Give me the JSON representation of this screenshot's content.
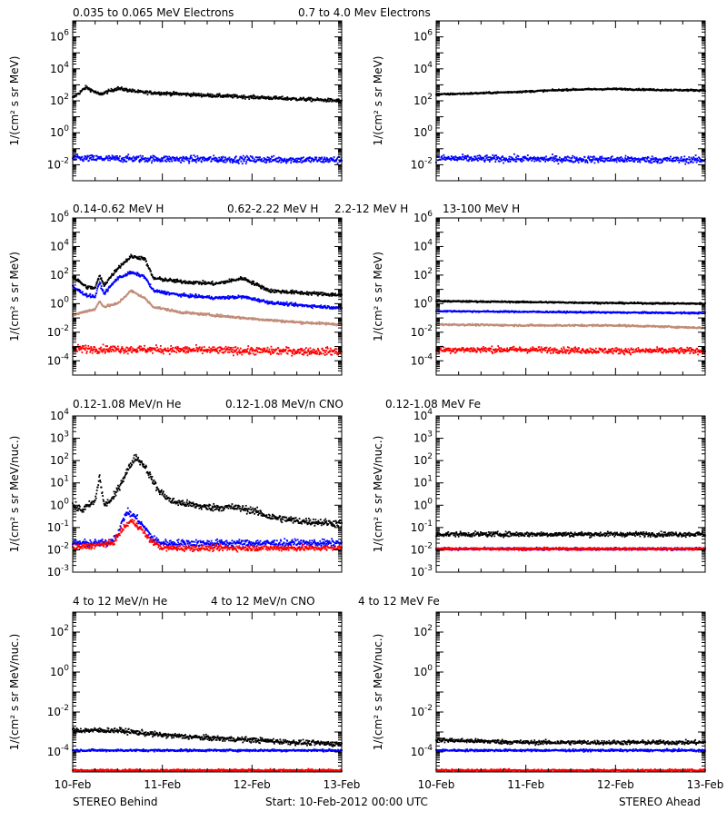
{
  "colors": {
    "black": "#000000",
    "blue": "#0000ff",
    "tan": "#c08c78",
    "red": "#ff0000"
  },
  "footer": {
    "left": "STEREO Behind",
    "center": "Start: 10-Feb-2012 00:00 UTC",
    "right": "STEREO Ahead"
  },
  "x_axis": {
    "ticks": [
      "10-Feb",
      "11-Feb",
      "12-Feb",
      "13-Feb"
    ],
    "range": [
      "2012-02-10",
      "2012-02-13"
    ]
  },
  "rows": [
    {
      "legend": [
        {
          "text": "0.035 to 0.065 MeV Electrons",
          "color": "#000000"
        },
        {
          "text": "0.7 to 4.0 Mev Electrons",
          "color": "#0000ff"
        }
      ],
      "ylabel": "1/(cm² s sr MeV)",
      "ylog": [
        -3,
        7
      ],
      "yticks": [
        {
          "base": "10",
          "exp": "6"
        },
        {
          "base": "10",
          "exp": "4"
        },
        {
          "base": "10",
          "exp": "2"
        },
        {
          "base": "10",
          "exp": "0"
        },
        {
          "base": "10",
          "exp": "-2"
        }
      ]
    },
    {
      "legend": [
        {
          "text": "0.14-0.62 MeV H",
          "color": "#000000"
        },
        {
          "text": "0.62-2.22 MeV H",
          "color": "#0000ff"
        },
        {
          "text": "2.2-12 MeV H",
          "color": "#c08c78"
        },
        {
          "text": "13-100 MeV H",
          "color": "#ff0000"
        }
      ],
      "ylabel": "1/(cm² s sr MeV)",
      "ylog": [
        -5,
        6
      ],
      "yticks": [
        {
          "base": "10",
          "exp": "6"
        },
        {
          "base": "10",
          "exp": "4"
        },
        {
          "base": "10",
          "exp": "2"
        },
        {
          "base": "10",
          "exp": "0"
        },
        {
          "base": "10",
          "exp": "-2"
        },
        {
          "base": "10",
          "exp": "-4"
        }
      ]
    },
    {
      "legend": [
        {
          "text": "0.12-1.08 MeV/n He",
          "color": "#000000"
        },
        {
          "text": "0.12-1.08 MeV/n CNO",
          "color": "#0000ff"
        },
        {
          "text": "0.12-1.08 MeV Fe",
          "color": "#ff0000"
        }
      ],
      "ylabel": "1/(cm² s sr MeV/nuc.)",
      "ylog": [
        -3,
        4
      ],
      "yticks": [
        {
          "base": "10",
          "exp": "4"
        },
        {
          "base": "10",
          "exp": "3"
        },
        {
          "base": "10",
          "exp": "2"
        },
        {
          "base": "10",
          "exp": "1"
        },
        {
          "base": "10",
          "exp": "0"
        },
        {
          "base": "10",
          "exp": "-1"
        },
        {
          "base": "10",
          "exp": "-2"
        },
        {
          "base": "10",
          "exp": "-3"
        }
      ]
    },
    {
      "legend": [
        {
          "text": "4 to 12 MeV/n He",
          "color": "#000000"
        },
        {
          "text": "4 to 12 MeV/n CNO",
          "color": "#0000ff"
        },
        {
          "text": "4 to 12 MeV Fe",
          "color": "#ff0000"
        }
      ],
      "ylabel": "1/(cm² s sr MeV/nuc.)",
      "ylog": [
        -5,
        3
      ],
      "yticks": [
        {
          "base": "10",
          "exp": "2"
        },
        {
          "base": "10",
          "exp": "0"
        },
        {
          "base": "10",
          "exp": "-2"
        },
        {
          "base": "10",
          "exp": "-4"
        }
      ]
    }
  ],
  "chart_data": [
    {
      "type": "scatter",
      "panel": "behind-electrons",
      "ylog": [
        -3,
        7
      ],
      "series": [
        {
          "color": "#000000",
          "x": [
            0,
            0.15,
            0.3,
            0.5,
            0.75,
            1.0,
            1.5,
            2.0,
            2.5,
            3.0
          ],
          "y": [
            150,
            700,
            250,
            600,
            350,
            300,
            220,
            170,
            130,
            100
          ],
          "noise": 0.1
        },
        {
          "color": "#0000ff",
          "x": [
            0,
            1.5,
            3.0
          ],
          "y": [
            0.025,
            0.022,
            0.02
          ],
          "noise": 0.2
        }
      ]
    },
    {
      "type": "scatter",
      "panel": "ahead-electrons",
      "ylog": [
        -3,
        7
      ],
      "series": [
        {
          "color": "#000000",
          "x": [
            0,
            0.5,
            1.0,
            1.5,
            2.0,
            2.5,
            3.0
          ],
          "y": [
            250,
            300,
            380,
            500,
            550,
            480,
            450
          ],
          "noise": 0.05
        },
        {
          "color": "#0000ff",
          "x": [
            0,
            1.5,
            3.0
          ],
          "y": [
            0.025,
            0.022,
            0.02
          ],
          "noise": 0.2
        }
      ]
    },
    {
      "type": "scatter",
      "panel": "behind-protons",
      "ylog": [
        -5,
        6
      ],
      "series": [
        {
          "color": "#000000",
          "x": [
            0,
            0.15,
            0.25,
            0.3,
            0.35,
            0.5,
            0.65,
            0.8,
            0.9,
            1.2,
            1.6,
            1.9,
            2.2,
            2.5,
            3.0
          ],
          "y": [
            80,
            15,
            12,
            90,
            20,
            300,
            2000,
            1500,
            60,
            35,
            25,
            60,
            8,
            6,
            4
          ],
          "noise": 0.12
        },
        {
          "color": "#0000ff",
          "x": [
            0,
            0.15,
            0.25,
            0.3,
            0.35,
            0.5,
            0.65,
            0.8,
            0.9,
            1.2,
            1.6,
            1.9,
            2.2,
            2.5,
            3.0
          ],
          "y": [
            15,
            4,
            3,
            30,
            5,
            60,
            150,
            80,
            8,
            4,
            2.5,
            3,
            1.2,
            0.8,
            0.5
          ],
          "noise": 0.1
        },
        {
          "color": "#c08c78",
          "x": [
            0,
            0.15,
            0.25,
            0.3,
            0.35,
            0.5,
            0.65,
            0.8,
            0.9,
            1.2,
            1.6,
            1.9,
            2.2,
            2.5,
            3.0
          ],
          "y": [
            0.15,
            0.3,
            0.4,
            1.5,
            0.6,
            1.0,
            8,
            2.5,
            0.6,
            0.25,
            0.15,
            0.1,
            0.07,
            0.05,
            0.035
          ],
          "noise": 0.08
        },
        {
          "color": "#ff0000",
          "x": [
            0,
            1.0,
            2.0,
            3.0
          ],
          "y": [
            0.0007,
            0.0006,
            0.0005,
            0.00045
          ],
          "noise": 0.25
        }
      ]
    },
    {
      "type": "scatter",
      "panel": "ahead-protons",
      "ylog": [
        -5,
        6
      ],
      "series": [
        {
          "color": "#000000",
          "x": [
            0,
            1.0,
            2.0,
            3.0
          ],
          "y": [
            1.5,
            1.3,
            1.1,
            1.0
          ],
          "noise": 0.05
        },
        {
          "color": "#0000ff",
          "x": [
            0,
            1.0,
            2.0,
            3.0
          ],
          "y": [
            0.3,
            0.27,
            0.24,
            0.22
          ],
          "noise": 0.05
        },
        {
          "color": "#c08c78",
          "x": [
            0,
            1.0,
            2.0,
            2.5,
            3.0
          ],
          "y": [
            0.035,
            0.03,
            0.03,
            0.025,
            0.02
          ],
          "noise": 0.06
        },
        {
          "color": "#ff0000",
          "x": [
            0,
            1.0,
            2.0,
            3.0
          ],
          "y": [
            0.0006,
            0.0006,
            0.0005,
            0.0005
          ],
          "noise": 0.2
        }
      ]
    },
    {
      "type": "scatter",
      "panel": "behind-heavy-low",
      "ylog": [
        -3,
        4
      ],
      "series": [
        {
          "color": "#000000",
          "x": [
            0,
            0.1,
            0.25,
            0.3,
            0.35,
            0.45,
            0.6,
            0.7,
            0.8,
            0.95,
            1.1,
            1.5,
            1.8,
            2.0,
            2.2,
            2.5,
            3.0
          ],
          "y": [
            1.0,
            0.6,
            1.5,
            20,
            1.0,
            2.0,
            30,
            150,
            60,
            5.0,
            1.5,
            0.8,
            0.8,
            0.6,
            0.3,
            0.2,
            0.15
          ],
          "noise": 0.15
        },
        {
          "color": "#0000ff",
          "x": [
            0,
            0.4,
            0.5,
            0.6,
            0.7,
            0.8,
            0.9,
            1.0,
            1.5,
            2.0,
            3.0
          ],
          "y": [
            0.02,
            0.02,
            0.05,
            0.5,
            0.3,
            0.1,
            0.03,
            0.02,
            0.02,
            0.02,
            0.02
          ],
          "noise": 0.15
        },
        {
          "color": "#ff0000",
          "x": [
            0,
            0.45,
            0.55,
            0.65,
            0.75,
            0.85,
            1.0,
            2.0,
            3.0
          ],
          "y": [
            0.012,
            0.02,
            0.08,
            0.2,
            0.1,
            0.03,
            0.012,
            0.012,
            0.012
          ],
          "noise": 0.12
        }
      ]
    },
    {
      "type": "scatter",
      "panel": "ahead-heavy-low",
      "ylog": [
        -3,
        4
      ],
      "series": [
        {
          "color": "#000000",
          "x": [
            0,
            1.5,
            3.0
          ],
          "y": [
            0.05,
            0.05,
            0.05
          ],
          "noise": 0.1
        },
        {
          "color": "#0000ff",
          "x": [
            0,
            1.5,
            3.0
          ],
          "y": [
            0.011,
            0.011,
            0.011
          ],
          "noise": 0.05
        },
        {
          "color": "#ff0000",
          "x": [
            0,
            1.5,
            3.0
          ],
          "y": [
            0.011,
            0.011,
            0.011
          ],
          "noise": 0.05
        }
      ]
    },
    {
      "type": "scatter",
      "panel": "behind-heavy-high",
      "ylog": [
        -5,
        3
      ],
      "series": [
        {
          "color": "#000000",
          "x": [
            0,
            0.5,
            1.0,
            1.5,
            2.0,
            2.5,
            3.0
          ],
          "y": [
            0.0012,
            0.0012,
            0.0007,
            0.0005,
            0.0004,
            0.0003,
            0.00025
          ],
          "noise": 0.12
        },
        {
          "color": "#0000ff",
          "x": [
            0,
            1.0,
            2.0,
            3.0
          ],
          "y": [
            0.00012,
            0.00012,
            0.00012,
            0.00012
          ],
          "noise": 0.05
        },
        {
          "color": "#ff0000",
          "x": [
            0,
            1.0,
            2.0,
            3.0
          ],
          "y": [
            1.2e-05,
            1.2e-05,
            1.2e-05,
            1.2e-05
          ],
          "noise": 0.05
        }
      ]
    },
    {
      "type": "scatter",
      "panel": "ahead-heavy-high",
      "ylog": [
        -5,
        3
      ],
      "series": [
        {
          "color": "#000000",
          "x": [
            0,
            1.0,
            2.0,
            3.0
          ],
          "y": [
            0.0004,
            0.0003,
            0.0003,
            0.0003
          ],
          "noise": 0.1
        },
        {
          "color": "#0000ff",
          "x": [
            0,
            1.0,
            2.0,
            3.0
          ],
          "y": [
            0.00012,
            0.00012,
            0.00012,
            0.00012
          ],
          "noise": 0.05
        },
        {
          "color": "#ff0000",
          "x": [
            0,
            1.0,
            2.0,
            3.0
          ],
          "y": [
            1.2e-05,
            1.2e-05,
            1.2e-05,
            1.2e-05
          ],
          "noise": 0.05
        }
      ]
    }
  ]
}
